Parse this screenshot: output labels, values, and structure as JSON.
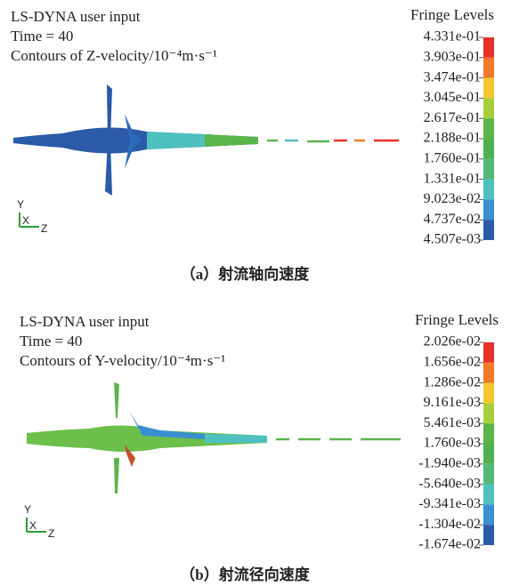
{
  "panels": [
    {
      "header": [
        "LS-DYNA user input",
        "Time = 40",
        "Contours of Z-velocity/10⁻⁴m·s⁻¹"
      ],
      "legend_title": "Fringe Levels",
      "levels": [
        "4.331e-01",
        "3.903e-01",
        "3.474e-01",
        "3.045e-01",
        "2.617e-01",
        "2.188e-01",
        "1.760e-01",
        "1.331e-01",
        "9.023e-02",
        "4.737e-02",
        "4.507e-03"
      ],
      "axes": [
        "Y",
        "X",
        "Z"
      ],
      "caption": "（a）射流轴向速度"
    },
    {
      "header": [
        "LS-DYNA user input",
        "Time = 40",
        "Contours of Y-velocity/10⁻⁴m·s⁻¹"
      ],
      "legend_title": "Fringe Levels",
      "levels": [
        "2.026e-02",
        "1.656e-02",
        "1.286e-02",
        "9.161e-03",
        "5.461e-03",
        "1.760e-03",
        "-1.940e-03",
        "-5.640e-03",
        "-9.341e-03",
        "-1.304e-02",
        "-1.674e-02"
      ],
      "axes": [
        "Y",
        "X",
        "Z"
      ],
      "caption": "（b）射流径向速度"
    }
  ]
}
